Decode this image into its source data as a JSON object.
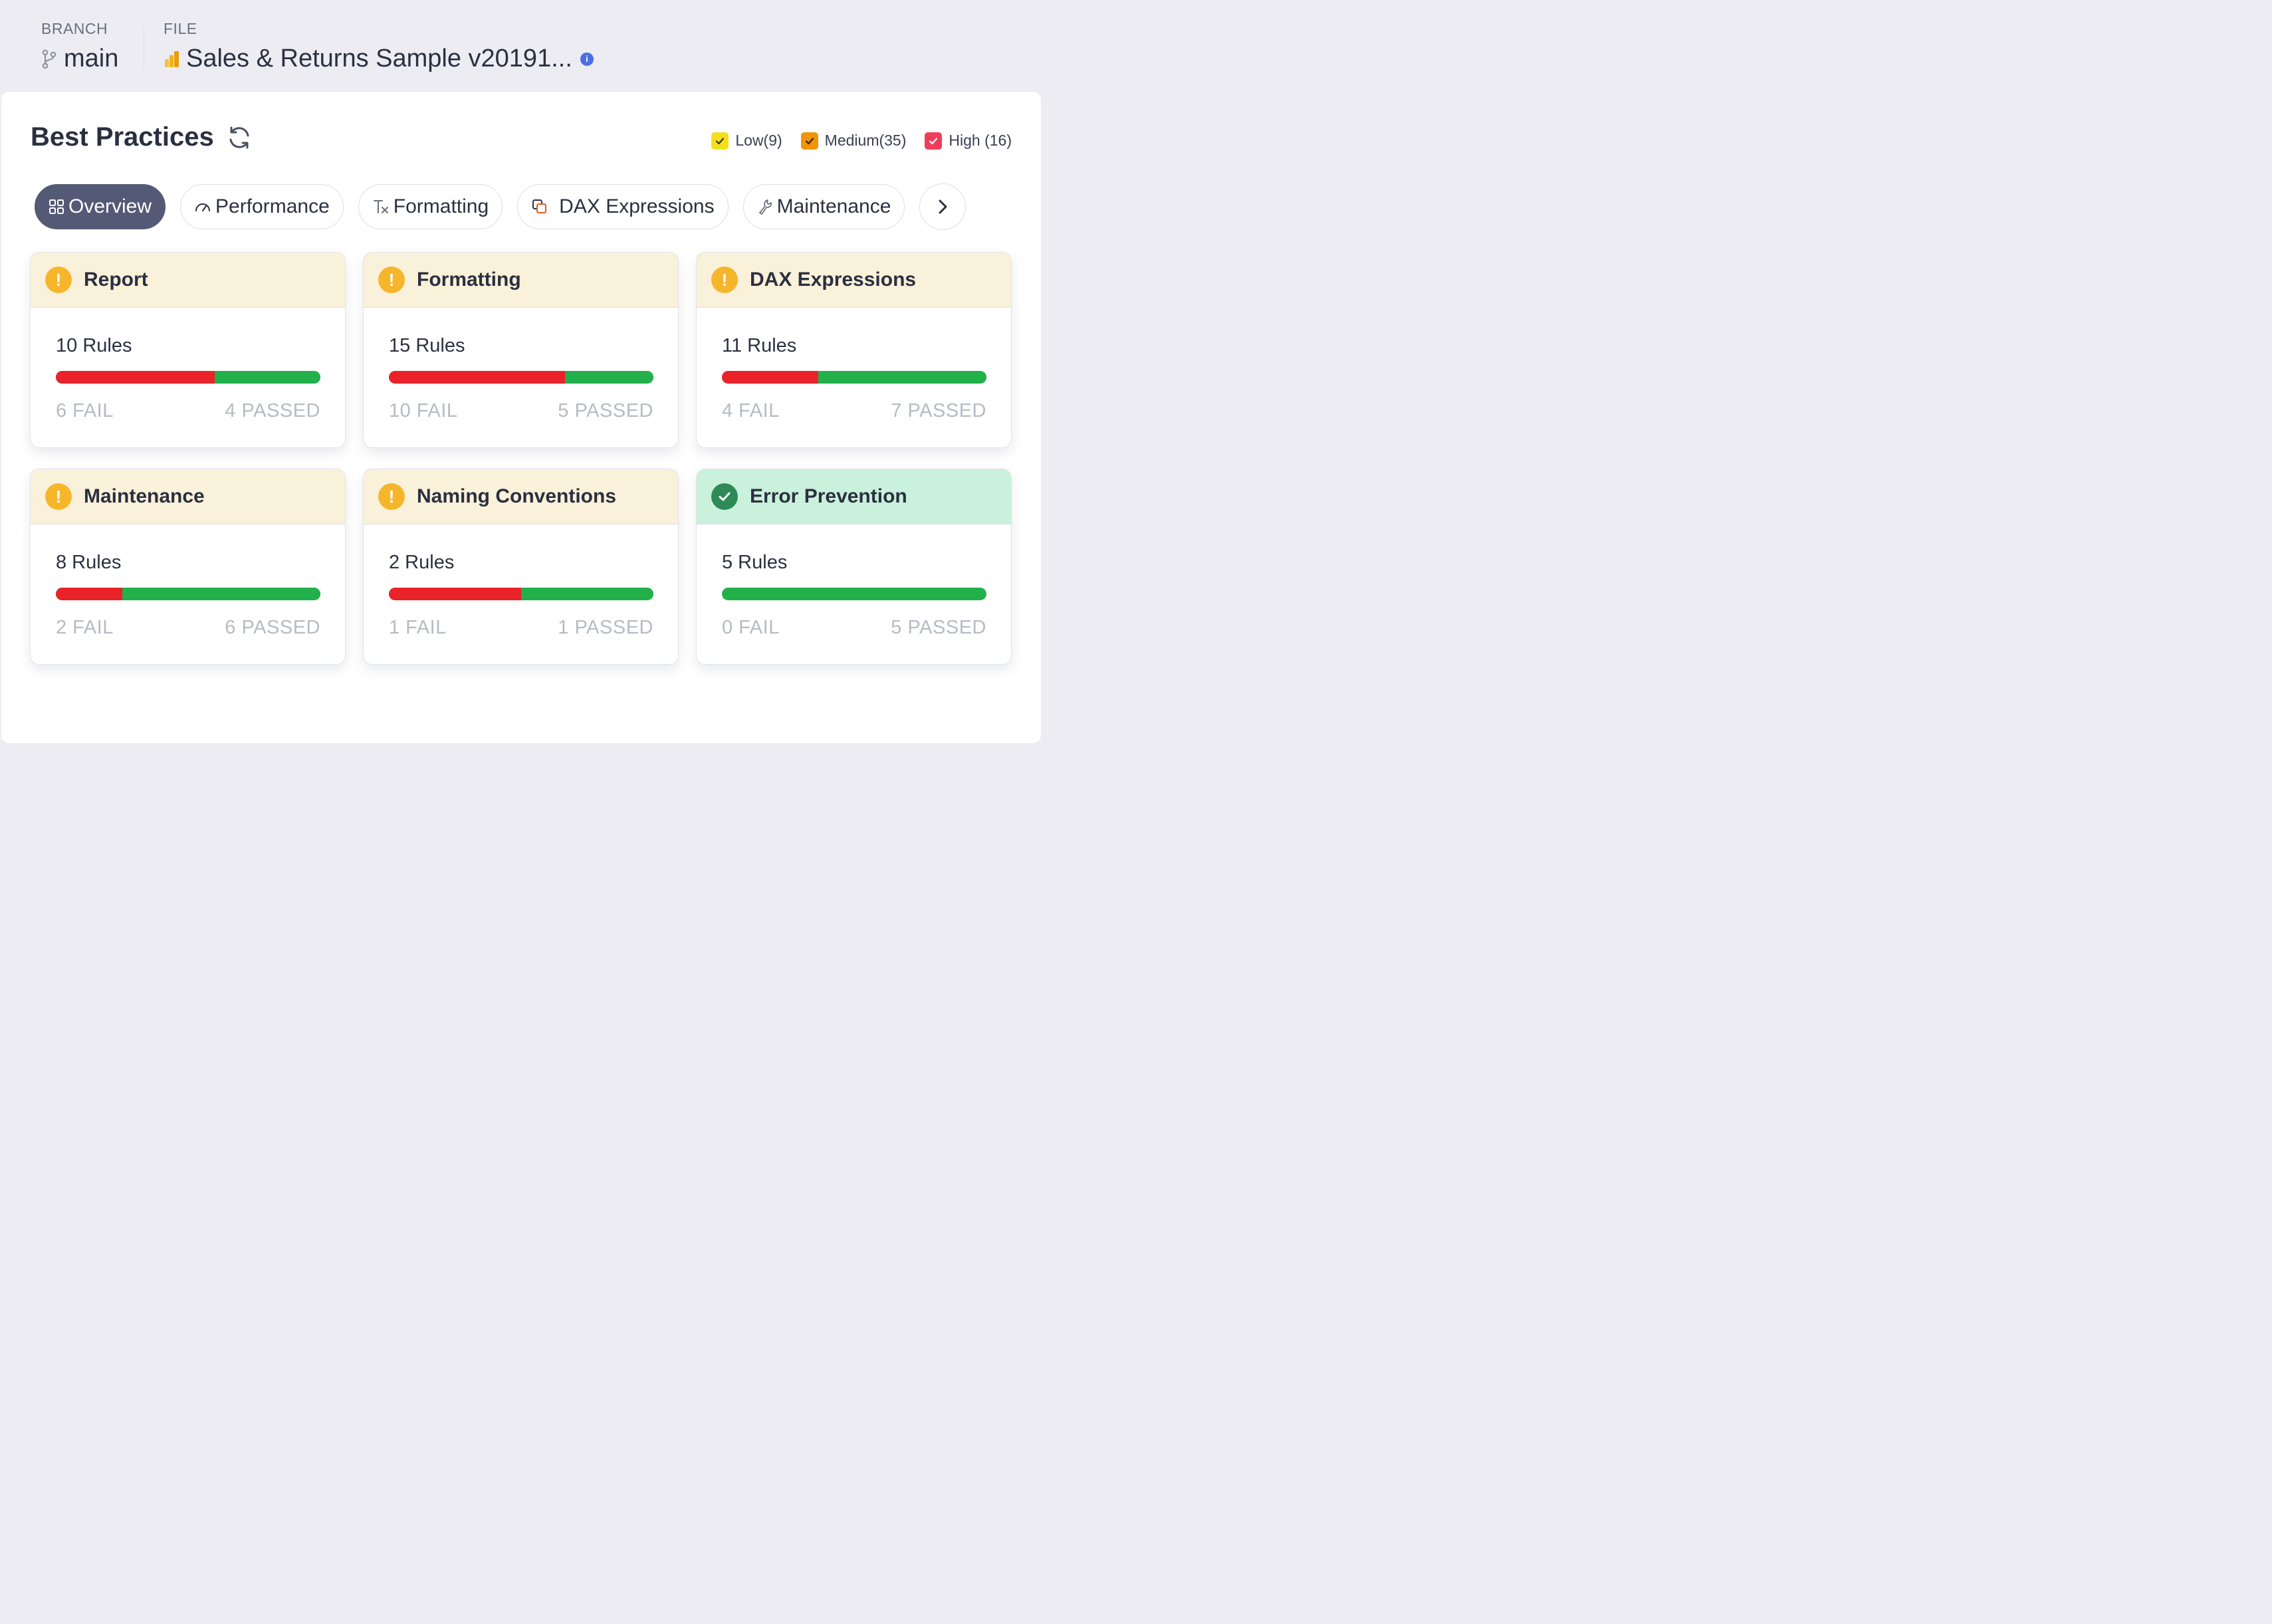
{
  "header": {
    "branch_label": "BRANCH",
    "branch_value": "main",
    "file_label": "FILE",
    "file_value": "Sales & Returns Sample v20191...",
    "info_icon": "i"
  },
  "page": {
    "title": "Best Practices"
  },
  "legend": [
    {
      "label": "Low(9)",
      "color": "#f3e01a",
      "border": "#d8c400"
    },
    {
      "label": "Medium(35)",
      "color": "#f0940a",
      "border": "#d47f00"
    },
    {
      "label": "High (16)",
      "color": "#ee3d5a",
      "border": "#d82a48"
    }
  ],
  "tabs": [
    {
      "label": "Overview",
      "icon": "grid-icon",
      "active": true
    },
    {
      "label": "Performance",
      "icon": "gauge-icon",
      "active": false
    },
    {
      "label": "Formatting",
      "icon": "clear-format-icon",
      "active": false
    },
    {
      "label": "DAX Expressions",
      "icon": "copy-icon",
      "active": false
    },
    {
      "label": "Maintenance",
      "icon": "wrench-icon",
      "active": false
    }
  ],
  "cards": [
    {
      "title": "Report",
      "status": "warn",
      "rules": "10 Rules",
      "fail": 6,
      "passed": 4,
      "fail_label": "6 FAIL",
      "passed_label": "4 PASSED"
    },
    {
      "title": "Formatting",
      "status": "warn",
      "rules": "15 Rules",
      "fail": 10,
      "passed": 5,
      "fail_label": "10 FAIL",
      "passed_label": "5 PASSED"
    },
    {
      "title": "DAX Expressions",
      "status": "warn",
      "rules": "11 Rules",
      "fail": 4,
      "passed": 7,
      "fail_label": "4 FAIL",
      "passed_label": "7 PASSED"
    },
    {
      "title": "Maintenance",
      "status": "warn",
      "rules": "8 Rules",
      "fail": 2,
      "passed": 6,
      "fail_label": "2 FAIL",
      "passed_label": "6 PASSED"
    },
    {
      "title": "Naming Conventions",
      "status": "warn",
      "rules": "2 Rules",
      "fail": 1,
      "passed": 1,
      "fail_label": "1 FAIL",
      "passed_label": "1 PASSED"
    },
    {
      "title": "Error Prevention",
      "status": "pass",
      "rules": "5 Rules",
      "fail": 0,
      "passed": 5,
      "fail_label": "0 FAIL",
      "passed_label": "5 PASSED"
    }
  ],
  "colors": {
    "fail": "#ea2229",
    "pass": "#22b04b",
    "warn_header": "#faf1da",
    "pass_header": "#c9f1dc",
    "active_tab": "#545a75"
  }
}
